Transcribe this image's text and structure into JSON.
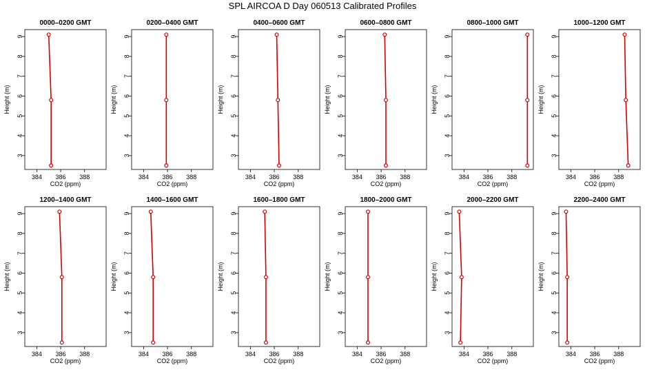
{
  "title": "SPL AIRCOA D  Day 060513  Calibrated Profiles",
  "chart_data": {
    "type": "line",
    "xlabel": "CO2 (ppm)",
    "ylabel": "Height (m)",
    "xlim": [
      383,
      389.8
    ],
    "ylim": [
      2.3,
      9.35
    ],
    "xticks": [
      384,
      386,
      388
    ],
    "yticks": [
      3,
      4,
      5,
      6,
      7,
      8,
      9
    ],
    "line_color": "#d40000",
    "marker": "open-circle",
    "panels": [
      {
        "title": "0000–0200 GMT",
        "points": [
          {
            "x": 385.2,
            "y": 2.5
          },
          {
            "x": 385.2,
            "y": 5.8
          },
          {
            "x": 385.0,
            "y": 9.1
          }
        ]
      },
      {
        "title": "0200–0400 GMT",
        "points": [
          {
            "x": 385.9,
            "y": 2.5
          },
          {
            "x": 385.9,
            "y": 5.8
          },
          {
            "x": 385.9,
            "y": 9.1
          }
        ]
      },
      {
        "title": "0400–0600 GMT",
        "points": [
          {
            "x": 386.4,
            "y": 2.5
          },
          {
            "x": 386.3,
            "y": 5.8
          },
          {
            "x": 386.2,
            "y": 9.1
          }
        ]
      },
      {
        "title": "0600–0800 GMT",
        "points": [
          {
            "x": 386.4,
            "y": 2.5
          },
          {
            "x": 386.4,
            "y": 5.8
          },
          {
            "x": 386.3,
            "y": 9.1
          }
        ]
      },
      {
        "title": "0800–1000 GMT",
        "points": [
          {
            "x": 389.3,
            "y": 2.5
          },
          {
            "x": 389.3,
            "y": 5.8
          },
          {
            "x": 389.3,
            "y": 9.1
          }
        ]
      },
      {
        "title": "1000–1200 GMT",
        "points": [
          {
            "x": 388.8,
            "y": 2.5
          },
          {
            "x": 388.6,
            "y": 5.8
          },
          {
            "x": 388.5,
            "y": 9.1
          }
        ]
      },
      {
        "title": "1200–1400 GMT",
        "points": [
          {
            "x": 386.1,
            "y": 2.5
          },
          {
            "x": 386.1,
            "y": 5.8
          },
          {
            "x": 385.9,
            "y": 9.1
          }
        ]
      },
      {
        "title": "1400–1600 GMT",
        "points": [
          {
            "x": 384.8,
            "y": 2.5
          },
          {
            "x": 384.8,
            "y": 5.8
          },
          {
            "x": 384.6,
            "y": 9.1
          }
        ]
      },
      {
        "title": "1600–1800 GMT",
        "points": [
          {
            "x": 385.3,
            "y": 2.5
          },
          {
            "x": 385.3,
            "y": 5.8
          },
          {
            "x": 385.2,
            "y": 9.1
          }
        ]
      },
      {
        "title": "1800–2000 GMT",
        "points": [
          {
            "x": 384.9,
            "y": 2.5
          },
          {
            "x": 384.9,
            "y": 5.8
          },
          {
            "x": 384.9,
            "y": 9.1
          }
        ]
      },
      {
        "title": "2000–2200 GMT",
        "points": [
          {
            "x": 383.7,
            "y": 2.5
          },
          {
            "x": 383.8,
            "y": 5.8
          },
          {
            "x": 383.6,
            "y": 9.1
          }
        ]
      },
      {
        "title": "2200–2400 GMT",
        "points": [
          {
            "x": 383.7,
            "y": 2.5
          },
          {
            "x": 383.7,
            "y": 5.8
          },
          {
            "x": 383.6,
            "y": 9.1
          }
        ]
      }
    ]
  }
}
